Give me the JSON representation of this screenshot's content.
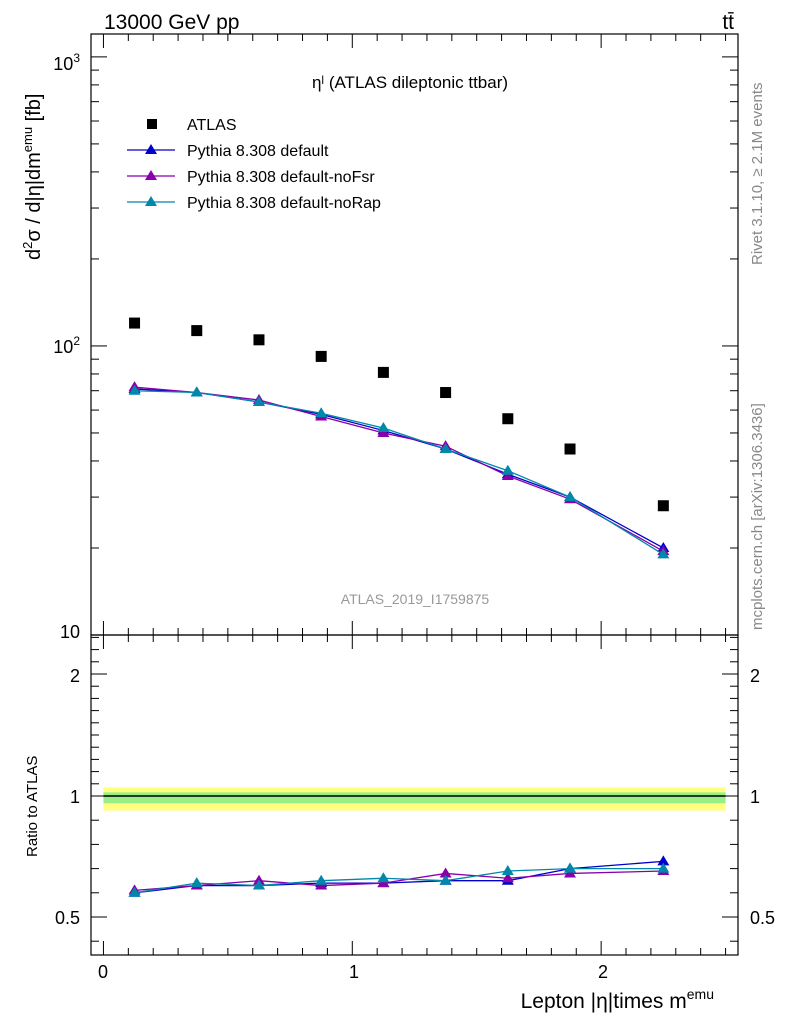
{
  "header": {
    "energy_label": "13000 GeV pp",
    "process_label": "tt̄"
  },
  "side_labels": {
    "rivet": "Rivet 3.1.10, ≥ 2.1M events",
    "source": "mcplots.cern.ch [arXiv:1306.3436]"
  },
  "chart_data": [
    {
      "panel": "main",
      "type": "scatter",
      "title": "ηˡ (ATLAS dileptonic ttbar)",
      "ylabel": "d²σ / d|η|dmᵉᵐᵘ [fb]",
      "ylabel_base": "d",
      "ylabel_sup": "2",
      "ylabel_mid": "σ / d|η|dm",
      "ylabel_sup2": "emu",
      "ylabel_end": " [fb]",
      "yscale": "log",
      "ylim": [
        10,
        1200
      ],
      "xlim": [
        -0.05,
        2.55
      ],
      "ytick_labels": [
        "10",
        "10²",
        "10³"
      ],
      "ytick_base": "10",
      "ytick_exps": [
        "",
        "2",
        "3"
      ],
      "watermark": "ATLAS_2019_I1759875",
      "legend_position": "top-left",
      "x": [
        0.125,
        0.375,
        0.625,
        0.875,
        1.125,
        1.375,
        1.625,
        1.875,
        2.25
      ],
      "series": [
        {
          "name": "ATLAS",
          "marker": "square",
          "color": "#000000",
          "values": [
            120,
            113,
            105,
            92,
            81,
            69,
            56,
            44,
            28
          ]
        },
        {
          "name": "Pythia 8.308 default",
          "marker": "triangle",
          "color": "#0000cc",
          "values": [
            71,
            69,
            64,
            58,
            51,
            44,
            36,
            30,
            20
          ]
        },
        {
          "name": "Pythia 8.308 default-noFsr",
          "marker": "triangle",
          "color": "#8800aa",
          "values": [
            72,
            69,
            65,
            57,
            50,
            45,
            35.5,
            29.5,
            19.5
          ]
        },
        {
          "name": "Pythia 8.308 default-noRap",
          "marker": "triangle",
          "color": "#0088aa",
          "values": [
            70,
            69,
            64,
            58.5,
            52,
            44,
            37,
            30,
            19
          ]
        }
      ]
    },
    {
      "panel": "ratio",
      "type": "line",
      "ylabel": "Ratio to ATLAS",
      "xlabel_main": "Lepton |η|times m",
      "xlabel_sup": "emu",
      "ylim": [
        0.35,
        2.35
      ],
      "xlim": [
        -0.05,
        2.55
      ],
      "yticks": [
        0.5,
        1,
        2
      ],
      "ytick_labels": [
        "0.5",
        "1",
        "2"
      ],
      "xticks": [
        0,
        1,
        2
      ],
      "xtick_labels": [
        "0",
        "1",
        "2"
      ],
      "band": {
        "center": 1.0,
        "inner": [
          0.97,
          1.03
        ],
        "outer": [
          0.94,
          1.07
        ]
      },
      "x": [
        0.125,
        0.375,
        0.625,
        0.875,
        1.125,
        1.375,
        1.625,
        1.875,
        2.25
      ],
      "series": [
        {
          "name": "Pythia 8.308 default",
          "color": "#0000cc",
          "values": [
            0.6,
            0.63,
            0.63,
            0.64,
            0.64,
            0.65,
            0.65,
            0.7,
            0.73
          ]
        },
        {
          "name": "Pythia 8.308 default-noFsr",
          "color": "#8800aa",
          "values": [
            0.61,
            0.63,
            0.65,
            0.63,
            0.64,
            0.68,
            0.66,
            0.68,
            0.69
          ]
        },
        {
          "name": "Pythia 8.308 default-noRap",
          "color": "#0088aa",
          "values": [
            0.6,
            0.64,
            0.63,
            0.65,
            0.66,
            0.65,
            0.69,
            0.7,
            0.7
          ]
        }
      ]
    }
  ]
}
